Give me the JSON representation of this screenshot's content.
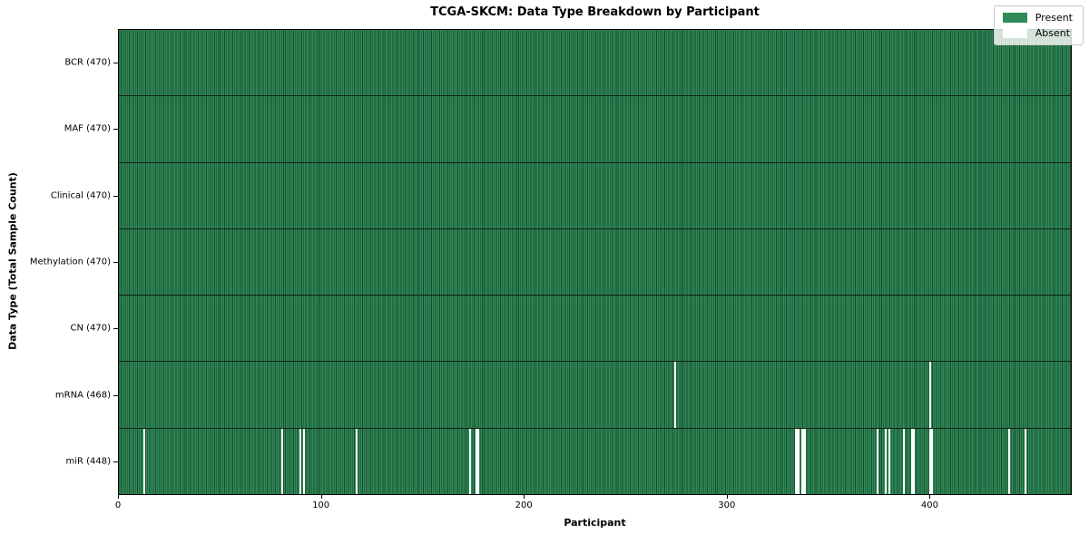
{
  "chart_data": {
    "type": "heatmap",
    "title": "TCGA-SKCM: Data Type Breakdown by Participant",
    "xlabel": "Participant",
    "ylabel": "Data Type (Total Sample Count)",
    "n_participants": 470,
    "x_ticks": [
      0,
      100,
      200,
      300,
      400
    ],
    "legend_position": "upper right",
    "grid": false,
    "colors": {
      "present": "#2e8b57",
      "present_edge": "#1a4a2d",
      "absent": "#ffffff"
    },
    "legend": [
      {
        "label": "Present",
        "color": "#2e8b57"
      },
      {
        "label": "Absent",
        "color": "#ffffff"
      }
    ],
    "rows": [
      {
        "label": "BCR (470)",
        "data_type": "BCR",
        "present_count": 470,
        "absent_participants": []
      },
      {
        "label": "MAF (470)",
        "data_type": "MAF",
        "present_count": 470,
        "absent_participants": []
      },
      {
        "label": "Clinical (470)",
        "data_type": "Clinical",
        "present_count": 470,
        "absent_participants": []
      },
      {
        "label": "Methylation (470)",
        "data_type": "Methylation",
        "present_count": 470,
        "absent_participants": []
      },
      {
        "label": "CN (470)",
        "data_type": "CN",
        "present_count": 470,
        "absent_participants": []
      },
      {
        "label": "mRNA (468)",
        "data_type": "mRNA",
        "present_count": 468,
        "absent_participants": [
          274,
          400
        ]
      },
      {
        "label": "miR (448)",
        "data_type": "miR",
        "present_count": 448,
        "absent_participants": [
          12,
          80,
          89,
          91,
          117,
          173,
          176,
          177,
          334,
          335,
          337,
          338,
          374,
          378,
          380,
          387,
          391,
          392,
          400,
          401,
          439,
          447
        ]
      }
    ]
  }
}
